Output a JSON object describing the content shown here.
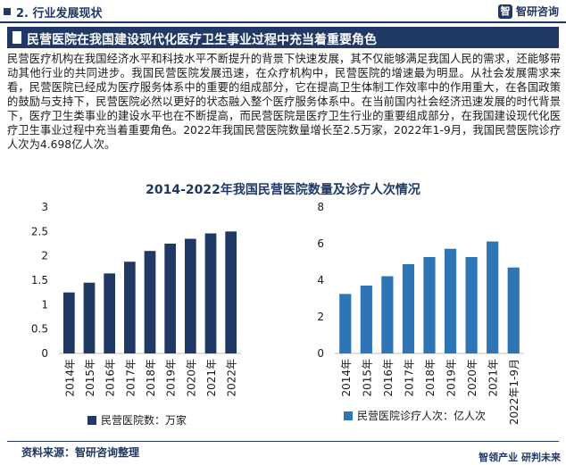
{
  "header": {
    "section": "2. 行业发展现状",
    "logo_mark": "智",
    "logo_text": "智研咨询"
  },
  "headline": "民营医院在我国建设现代化医疗卫生事业过程中充当着重要角色",
  "body_text": "民营医疗机构在我国经济水平和科技水平不断提升的背景下快速发展，其不仅能够满足我国人民的需求，还能够带动其他行业的共同进步。我国民营医院发展迅速，在众疗机构中，民营医院的增速最为明显。从社会发展需求来看，民营医院已经成为医疗服务体系中的重要的组成部分，它在提高卫生体制工作效率中的作用重大，在各国政策的鼓励与支持下，民营医院必然以更好的状态融入整个医疗服务体系中。在当前国内社会经济迅速发展的时代背景下，医疗卫生类事业的建设水平也在不断提高，而民营医院是医疗卫生行业的重要组成部分，在我国建设现代化医疗卫生事业过程中充当着重要角色。2022年我国民营医院数量增长至2.5万家，2022年1-9月，我国民营医院诊疗人次为4.698亿人次。",
  "chart_title": "2014-2022年我国民营医院数量及诊疗人次情况",
  "chart_data": [
    {
      "type": "bar",
      "categories": [
        "2014年",
        "2015年",
        "2016年",
        "2017年",
        "2018年",
        "2019年",
        "2020年",
        "2021年",
        "2022年"
      ],
      "series": [
        {
          "name": "民营医院数：万家",
          "values": [
            1.25,
            1.45,
            1.64,
            1.88,
            2.1,
            2.25,
            2.35,
            2.46,
            2.5
          ]
        }
      ],
      "ylim": [
        0,
        3
      ],
      "yticks": [
        "0",
        "0.5",
        "1",
        "1.5",
        "2",
        "2.5",
        "3"
      ],
      "color": "#1f3864"
    },
    {
      "type": "bar",
      "categories": [
        "2014年",
        "2015年",
        "2016年",
        "2017年",
        "2018年",
        "2019年",
        "2020年",
        "2021年",
        "2022年1-9月"
      ],
      "series": [
        {
          "name": "民营医院诊疗人次：亿人次",
          "values": [
            3.25,
            3.71,
            4.22,
            4.88,
            5.27,
            5.72,
            5.27,
            6.12,
            4.698
          ]
        }
      ],
      "ylim": [
        0,
        8
      ],
      "yticks": [
        "0",
        "2",
        "4",
        "6",
        "8"
      ],
      "color": "#2e75b6"
    }
  ],
  "footer": {
    "source": "资料来源：智研咨询整理",
    "slogan": "智领产业  研判未来"
  }
}
